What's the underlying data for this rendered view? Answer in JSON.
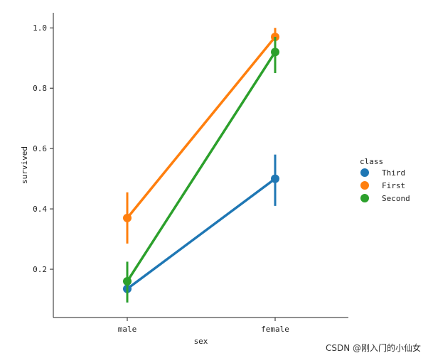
{
  "chart_data": {
    "type": "line",
    "xlabel": "sex",
    "ylabel": "survived",
    "categories": [
      "male",
      "female"
    ],
    "ylim": [
      0.04,
      1.05
    ],
    "yticks": [
      0.2,
      0.4,
      0.6,
      0.8,
      1.0
    ],
    "ytick_labels": [
      "0.2",
      "0.4",
      "0.6",
      "0.8",
      "1.0"
    ],
    "legend": {
      "title": "class",
      "placement": "center-right"
    },
    "series": [
      {
        "name": "Third",
        "color": "#1f77b4",
        "values": [
          0.135,
          0.5
        ],
        "ci_low": [
          0.09,
          0.41
        ],
        "ci_high": [
          0.18,
          0.58
        ]
      },
      {
        "name": "First",
        "color": "#ff7f0e",
        "values": [
          0.37,
          0.97
        ],
        "ci_low": [
          0.285,
          0.935
        ],
        "ci_high": [
          0.455,
          1.0
        ]
      },
      {
        "name": "Second",
        "color": "#2ca02c",
        "values": [
          0.16,
          0.92
        ],
        "ci_low": [
          0.09,
          0.85
        ],
        "ci_high": [
          0.225,
          0.97
        ]
      }
    ],
    "grid": false
  },
  "watermark": "CSDN @刚入门的小仙女"
}
